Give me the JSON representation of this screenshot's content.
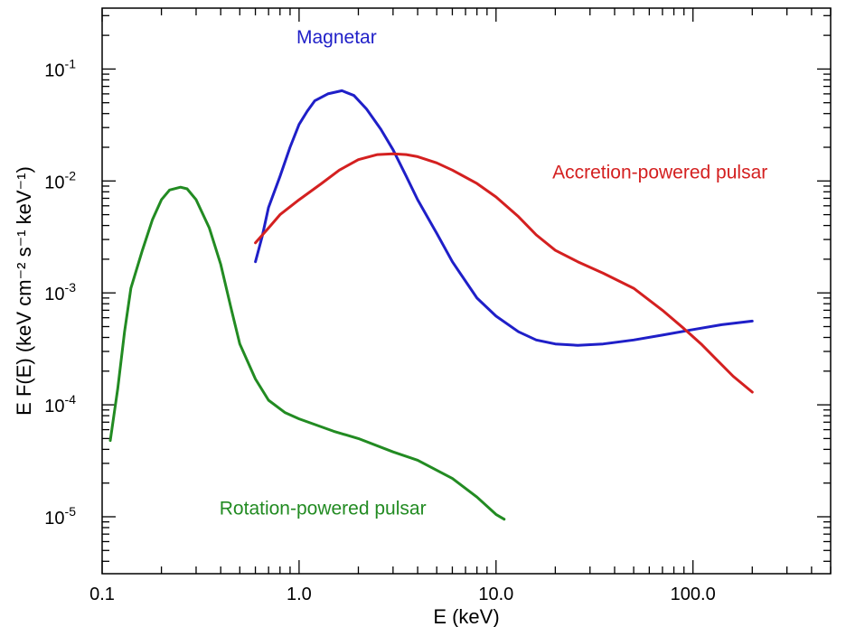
{
  "chart_data": {
    "type": "line",
    "xscale": "log",
    "yscale": "log",
    "xlabel": "E (keV)",
    "ylabel": "E F(E)  (keV cm⁻² s⁻¹ keV⁻¹)",
    "xlim": [
      0.1,
      500
    ],
    "ylim": [
      3.1e-06,
      0.35
    ],
    "x_tick_labels": [
      "0.1",
      "1.0",
      "10.0",
      "100.0"
    ],
    "x_tick_values": [
      0.1,
      1,
      10,
      100
    ],
    "y_ticks": [
      {
        "value": 0.1,
        "mantissa": "10",
        "exponent": "-1"
      },
      {
        "value": 0.01,
        "mantissa": "10",
        "exponent": "-2"
      },
      {
        "value": 0.001,
        "mantissa": "10",
        "exponent": "-3"
      },
      {
        "value": 0.0001,
        "mantissa": "10",
        "exponent": "-4"
      },
      {
        "value": 1e-05,
        "mantissa": "10",
        "exponent": "-5"
      }
    ],
    "grid": false,
    "legend": "none (inline labels)",
    "series": [
      {
        "name": "Magnetar",
        "color": "#1f1fc8",
        "label_at": [
          1.55,
          0.17
        ],
        "points": [
          [
            0.6,
            0.0019
          ],
          [
            0.65,
            0.0032
          ],
          [
            0.7,
            0.0058
          ],
          [
            0.8,
            0.011
          ],
          [
            0.9,
            0.02
          ],
          [
            1.0,
            0.032
          ],
          [
            1.1,
            0.042
          ],
          [
            1.2,
            0.052
          ],
          [
            1.4,
            0.06
          ],
          [
            1.65,
            0.064
          ],
          [
            1.9,
            0.058
          ],
          [
            2.2,
            0.044
          ],
          [
            2.6,
            0.029
          ],
          [
            3.0,
            0.019
          ],
          [
            3.5,
            0.011
          ],
          [
            4.0,
            0.0068
          ],
          [
            5.0,
            0.0034
          ],
          [
            6.0,
            0.0019
          ],
          [
            8.0,
            0.0009
          ],
          [
            10.0,
            0.00062
          ],
          [
            13.0,
            0.00045
          ],
          [
            16.0,
            0.00038
          ],
          [
            20.0,
            0.00035
          ],
          [
            26.0,
            0.00034
          ],
          [
            35.0,
            0.00035
          ],
          [
            50.0,
            0.00038
          ],
          [
            70.0,
            0.00042
          ],
          [
            100.0,
            0.00047
          ],
          [
            140.0,
            0.00052
          ],
          [
            200.0,
            0.00056
          ]
        ]
      },
      {
        "name": "Accretion-powered pulsar",
        "color": "#d42020",
        "label_at": [
          68,
          0.0105
        ],
        "points": [
          [
            0.6,
            0.0028
          ],
          [
            0.7,
            0.0038
          ],
          [
            0.8,
            0.005
          ],
          [
            1.0,
            0.0068
          ],
          [
            1.3,
            0.0095
          ],
          [
            1.6,
            0.0125
          ],
          [
            2.0,
            0.0155
          ],
          [
            2.5,
            0.0172
          ],
          [
            3.0,
            0.0175
          ],
          [
            3.5,
            0.0172
          ],
          [
            4.0,
            0.0165
          ],
          [
            5.0,
            0.0145
          ],
          [
            6.0,
            0.0125
          ],
          [
            8.0,
            0.0095
          ],
          [
            10.0,
            0.0072
          ],
          [
            13.0,
            0.0048
          ],
          [
            16.0,
            0.0033
          ],
          [
            20.0,
            0.0024
          ],
          [
            26.0,
            0.0019
          ],
          [
            35.0,
            0.0015
          ],
          [
            50.0,
            0.0011
          ],
          [
            70.0,
            0.0007
          ],
          [
            90.0,
            0.00048
          ],
          [
            110.0,
            0.00035
          ],
          [
            130.0,
            0.00026
          ],
          [
            160.0,
            0.00018
          ],
          [
            200.0,
            0.00013
          ]
        ]
      },
      {
        "name": "Rotation-powered pulsar",
        "color": "#228b22",
        "label_at": [
          1.32,
          1.05e-05
        ],
        "points": [
          [
            0.11,
            4.8e-05
          ],
          [
            0.12,
            0.00014
          ],
          [
            0.13,
            0.00045
          ],
          [
            0.14,
            0.0011
          ],
          [
            0.16,
            0.0024
          ],
          [
            0.18,
            0.0045
          ],
          [
            0.2,
            0.0068
          ],
          [
            0.22,
            0.0083
          ],
          [
            0.25,
            0.0088
          ],
          [
            0.27,
            0.0085
          ],
          [
            0.3,
            0.0068
          ],
          [
            0.35,
            0.0038
          ],
          [
            0.4,
            0.0018
          ],
          [
            0.45,
            0.00075
          ],
          [
            0.5,
            0.00035
          ],
          [
            0.6,
            0.00017
          ],
          [
            0.7,
            0.00011
          ],
          [
            0.85,
            8.5e-05
          ],
          [
            1.0,
            7.5e-05
          ],
          [
            1.5,
            5.8e-05
          ],
          [
            2.0,
            5e-05
          ],
          [
            3.0,
            3.8e-05
          ],
          [
            4.0,
            3.2e-05
          ],
          [
            6.0,
            2.2e-05
          ],
          [
            8.0,
            1.5e-05
          ],
          [
            10.0,
            1.05e-05
          ],
          [
            11.0,
            9.5e-06
          ]
        ]
      }
    ]
  }
}
